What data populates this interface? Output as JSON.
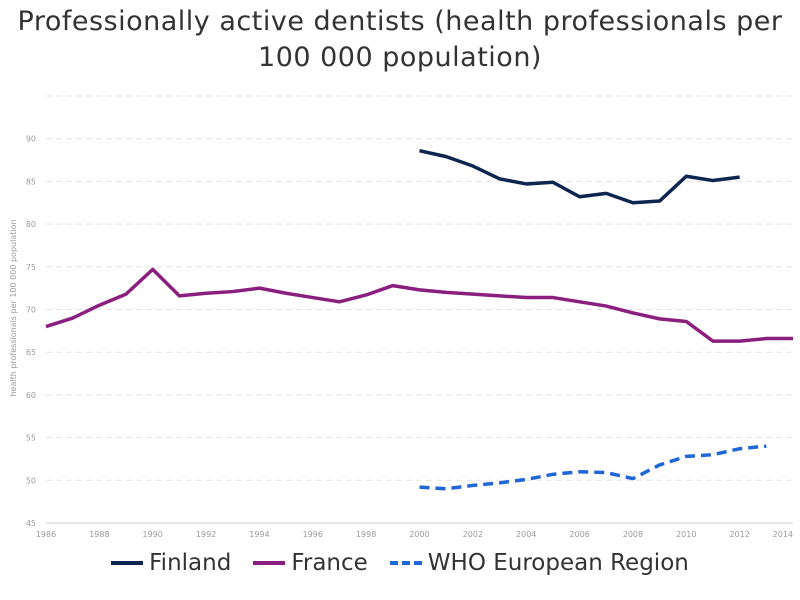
{
  "chart_data": {
    "type": "line",
    "title": "Professionally active dentists (health professionals per 100 000 population)",
    "ylabel": "health professionals per 100 000 population",
    "xlabel": "",
    "xlim": [
      1986,
      2014
    ],
    "ylim": [
      45,
      95
    ],
    "grid": true,
    "legend_position": "bottom",
    "x_ticks": [
      "1986",
      "1988",
      "1990",
      "1992",
      "1994",
      "1996",
      "1998",
      "2000",
      "2002",
      "2004",
      "2006",
      "2008",
      "2010",
      "2012",
      "2014"
    ],
    "y_ticks": [
      "45",
      "50",
      "55",
      "60",
      "65",
      "70",
      "75",
      "80",
      "85",
      "90"
    ],
    "series": [
      {
        "name": "Finland",
        "color": "#0d2550",
        "dash": "solid",
        "points": [
          [
            2000,
            88.6
          ],
          [
            2001,
            87.9
          ],
          [
            2002,
            86.8
          ],
          [
            2003,
            85.3
          ],
          [
            2004,
            84.7
          ],
          [
            2005,
            84.9
          ],
          [
            2006,
            83.2
          ],
          [
            2007,
            83.6
          ],
          [
            2008,
            82.5
          ],
          [
            2009,
            82.7
          ],
          [
            2010,
            85.6
          ],
          [
            2011,
            85.1
          ],
          [
            2012,
            85.5
          ]
        ]
      },
      {
        "name": "France",
        "color": "#8a1f7f",
        "dash": "solid",
        "points": [
          [
            1986,
            68.0
          ],
          [
            1987,
            69.0
          ],
          [
            1988,
            70.5
          ],
          [
            1989,
            71.8
          ],
          [
            1990,
            74.7
          ],
          [
            1991,
            71.6
          ],
          [
            1992,
            71.9
          ],
          [
            1993,
            72.1
          ],
          [
            1994,
            72.5
          ],
          [
            1995,
            71.9
          ],
          [
            1996,
            71.4
          ],
          [
            1997,
            70.9
          ],
          [
            1998,
            71.7
          ],
          [
            1999,
            72.8
          ],
          [
            2000,
            72.3
          ],
          [
            2001,
            72.0
          ],
          [
            2002,
            71.8
          ],
          [
            2003,
            71.6
          ],
          [
            2004,
            71.4
          ],
          [
            2005,
            71.4
          ],
          [
            2006,
            70.9
          ],
          [
            2007,
            70.4
          ],
          [
            2008,
            69.6
          ],
          [
            2009,
            68.9
          ],
          [
            2010,
            68.6
          ],
          [
            2011,
            66.3
          ],
          [
            2012,
            66.3
          ],
          [
            2013,
            66.6
          ],
          [
            2014,
            66.6
          ]
        ]
      },
      {
        "name": "WHO European Region",
        "color": "#1f66d6",
        "dash": "dashed",
        "points": [
          [
            2000,
            49.2
          ],
          [
            2001,
            49.0
          ],
          [
            2002,
            49.4
          ],
          [
            2003,
            49.7
          ],
          [
            2004,
            50.1
          ],
          [
            2005,
            50.7
          ],
          [
            2006,
            51.0
          ],
          [
            2007,
            50.9
          ],
          [
            2008,
            50.2
          ],
          [
            2009,
            51.8
          ],
          [
            2010,
            52.8
          ],
          [
            2011,
            53.0
          ],
          [
            2012,
            53.7
          ],
          [
            2013,
            54.0
          ]
        ]
      }
    ]
  }
}
